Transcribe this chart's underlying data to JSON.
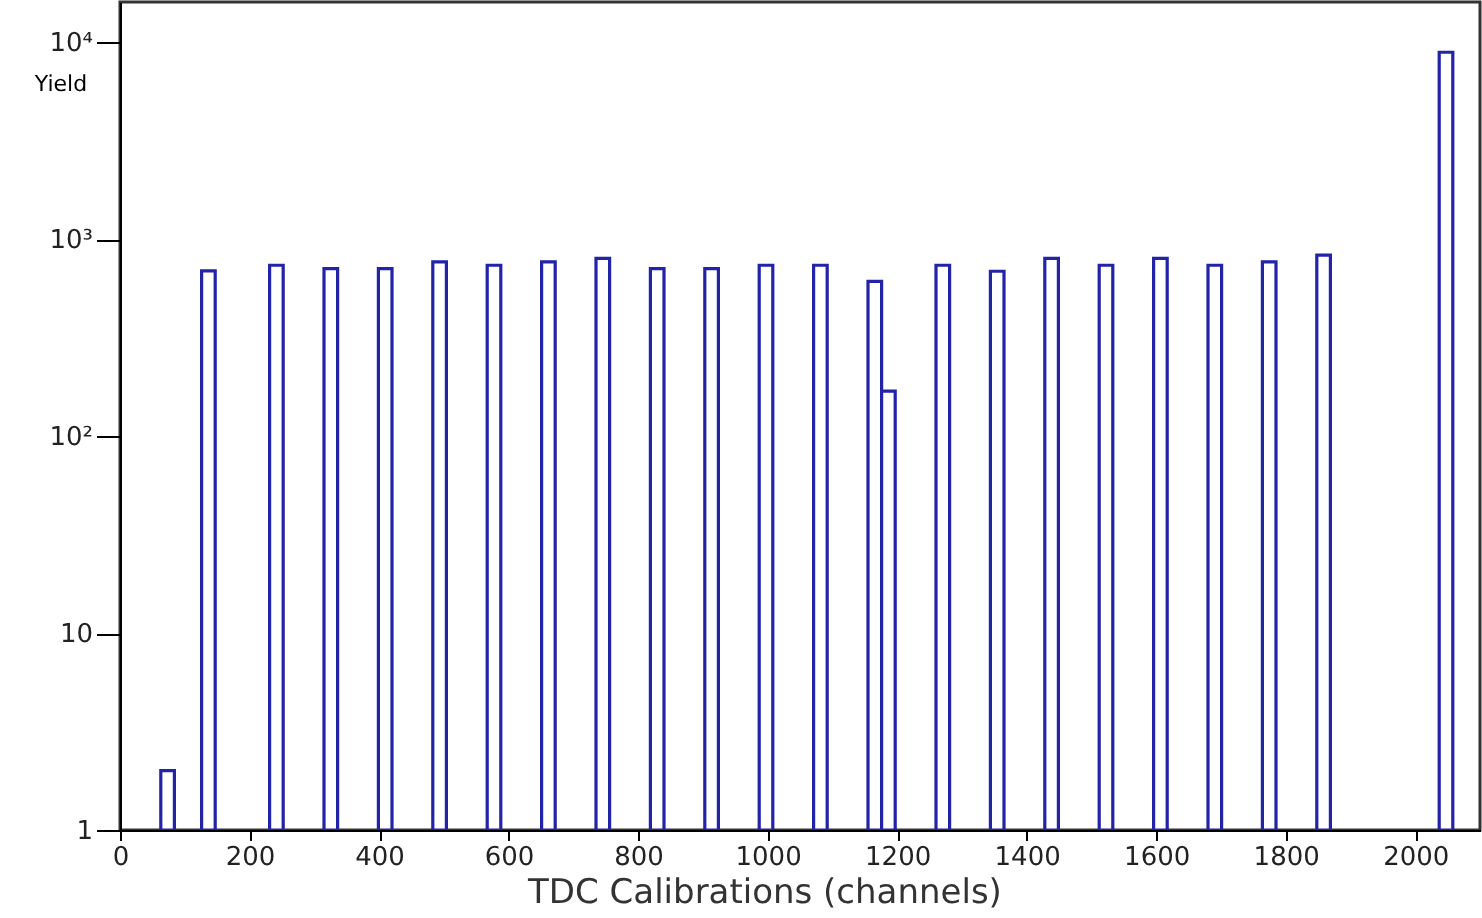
{
  "chart_data": {
    "type": "histogram",
    "xlabel": "TDC Calibrations (channels)",
    "ylabel": "Yield",
    "color": "#2323a8",
    "bins": [
      0,
      21,
      42,
      63,
      84,
      105,
      126,
      147,
      168,
      189,
      210,
      231,
      252,
      273,
      294,
      315,
      336,
      357,
      378,
      399,
      420,
      441,
      462,
      483,
      504,
      525,
      546,
      567,
      588,
      609,
      630,
      651,
      672,
      693,
      714,
      735,
      756,
      777,
      798,
      819,
      840,
      861,
      882,
      903,
      924,
      945,
      966,
      987,
      1008,
      1029,
      1050,
      1071,
      1092,
      1113,
      1134,
      1155,
      1176,
      1197,
      1218,
      1239,
      1260,
      1281,
      1302,
      1323,
      1344,
      1365,
      1386,
      1407,
      1428,
      1449,
      1470,
      1491,
      1512,
      1533,
      1554,
      1575,
      1596,
      1617,
      1638,
      1659,
      1680,
      1701,
      1722,
      1743,
      1764,
      1785,
      1806,
      1827,
      1848,
      1869,
      1890,
      1911,
      1932,
      1953,
      1974,
      1995,
      2016,
      2037,
      2058,
      2079,
      2100
    ],
    "values": [
      null,
      null,
      null,
      2,
      null,
      null,
      690,
      null,
      null,
      null,
      null,
      737,
      null,
      null,
      null,
      708,
      null,
      null,
      null,
      708,
      null,
      null,
      null,
      767,
      null,
      null,
      null,
      737,
      null,
      null,
      null,
      767,
      null,
      null,
      null,
      798,
      null,
      null,
      null,
      708,
      null,
      null,
      null,
      708,
      null,
      null,
      null,
      737,
      null,
      null,
      null,
      737,
      null,
      null,
      null,
      611,
      169,
      null,
      null,
      null,
      737,
      null,
      null,
      null,
      687,
      null,
      null,
      null,
      798,
      null,
      null,
      null,
      737,
      null,
      null,
      null,
      798,
      null,
      null,
      null,
      737,
      null,
      null,
      null,
      767,
      null,
      null,
      null,
      829,
      null,
      null,
      null,
      null,
      null,
      null,
      null,
      null,
      8890,
      null,
      null
    ],
    "xlim": [
      0,
      2100
    ],
    "xticks": [
      0,
      200,
      400,
      600,
      800,
      1000,
      1200,
      1400,
      1600,
      1800,
      2000
    ],
    "ylim": [
      1,
      16000
    ],
    "log": true,
    "yticks": [
      1,
      10,
      {
        "value": 100,
        "label": "10²"
      },
      {
        "value": 1000,
        "label": "10³"
      },
      {
        "value": 10000,
        "label": "10⁴"
      }
    ],
    "grid": false
  }
}
